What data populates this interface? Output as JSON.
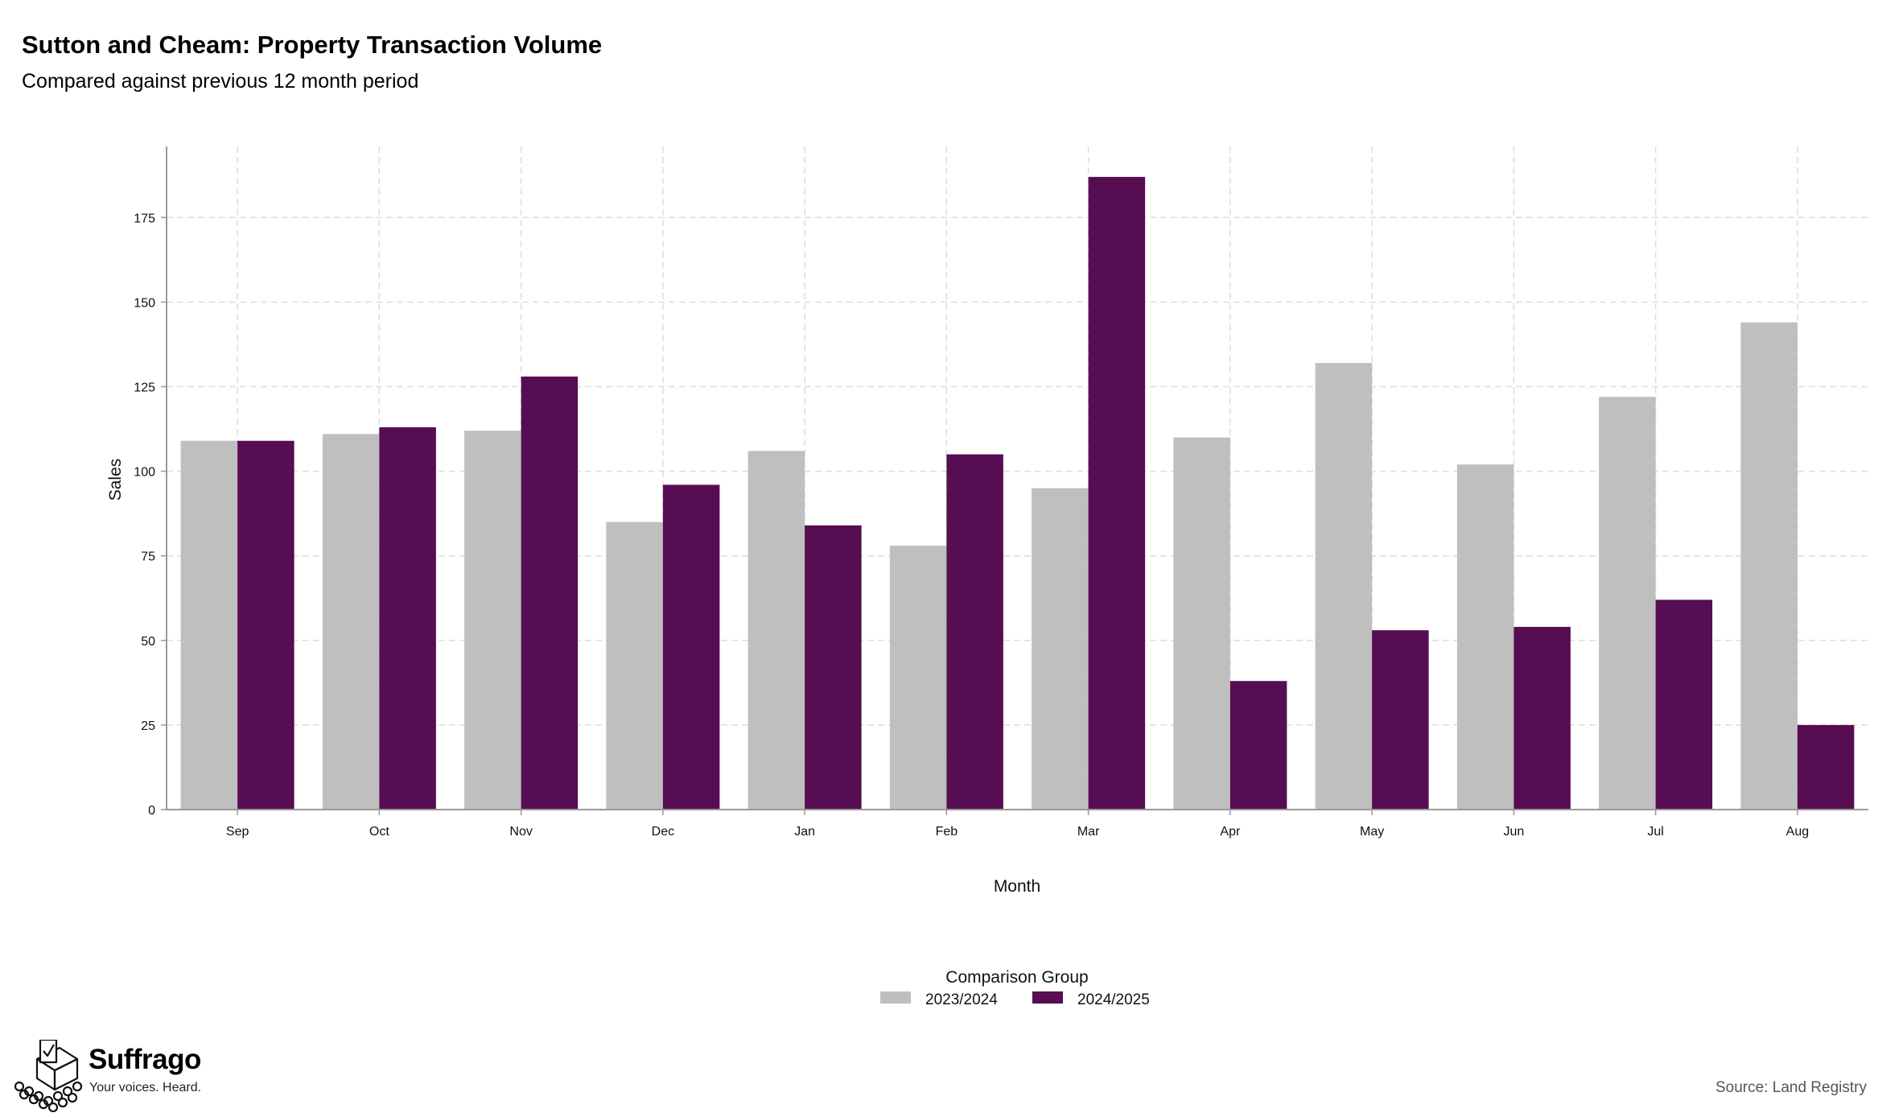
{
  "chart_data": {
    "type": "bar",
    "title": "Sutton and Cheam: Property Transaction Volume",
    "subtitle": "Compared against previous 12 month period",
    "xlabel": "Month",
    "ylabel": "Sales",
    "categories": [
      "Sep",
      "Oct",
      "Nov",
      "Dec",
      "Jan",
      "Feb",
      "Mar",
      "Apr",
      "May",
      "Jun",
      "Jul",
      "Aug"
    ],
    "series": [
      {
        "name": "2023/2024",
        "color": "#bfbfbf",
        "values": [
          109,
          111,
          112,
          85,
          106,
          78,
          95,
          110,
          132,
          102,
          122,
          144
        ]
      },
      {
        "name": "2024/2025",
        "color": "#560d52",
        "values": [
          109,
          113,
          128,
          96,
          84,
          105,
          187,
          38,
          53,
          54,
          62,
          25
        ]
      }
    ],
    "ylim": [
      0,
      196
    ],
    "yticks": [
      0,
      25,
      50,
      75,
      100,
      125,
      150,
      175
    ],
    "grid": true,
    "legend": {
      "title": "Comparison Group",
      "position": "bottom"
    }
  },
  "branding": {
    "name": "Suffrago",
    "tagline": "Your voices. Heard.",
    "logo_icon": "ballot-box-icon"
  },
  "source": "Source: Land Registry"
}
